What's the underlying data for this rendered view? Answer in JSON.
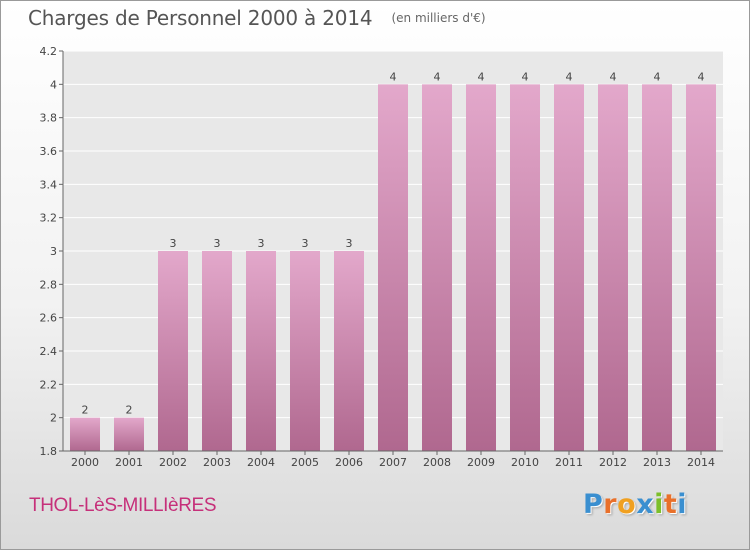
{
  "header": {
    "title": "Charges de Personnel 2000 à 2014",
    "subtitle": "(en milliers d'€)"
  },
  "footer": {
    "commune": "THOL-LèS-MILLIèRES",
    "logo": "Proxiti"
  },
  "colors": {
    "bar_top": "#e3a8cb",
    "bar_bottom": "#b0688f",
    "plot_bg": "#e8e8e8",
    "grid": "#ffffff",
    "commune_text": "#c6307a",
    "logo_letters": [
      "#3a8fd0",
      "#e9702a",
      "#f0a020",
      "#3a8fd0",
      "#7cbf2a",
      "#e9702a",
      "#3a8fd0"
    ]
  },
  "chart_data": {
    "type": "bar",
    "title": "Charges de Personnel 2000 à 2014",
    "subtitle": "(en milliers d'€)",
    "xlabel": "",
    "ylabel": "",
    "categories": [
      "2000",
      "2001",
      "2002",
      "2003",
      "2004",
      "2005",
      "2006",
      "2007",
      "2008",
      "2009",
      "2010",
      "2011",
      "2012",
      "2013",
      "2014"
    ],
    "values": [
      2,
      2,
      3,
      3,
      3,
      3,
      3,
      4,
      4,
      4,
      4,
      4,
      4,
      4,
      4
    ],
    "data_labels": [
      "2",
      "2",
      "3",
      "3",
      "3",
      "3",
      "3",
      "4",
      "4",
      "4",
      "4",
      "4",
      "4",
      "4",
      "4"
    ],
    "ylim": [
      1.8,
      4.2
    ],
    "yticks": [
      1.8,
      2,
      2.2,
      2.4,
      2.6,
      2.8,
      3,
      3.2,
      3.4,
      3.6,
      3.8,
      4,
      4.2
    ],
    "ytick_labels": [
      "1.8",
      "2",
      "2.2",
      "2.4",
      "2.6",
      "2.8",
      "3",
      "3.2",
      "3.4",
      "3.6",
      "3.8",
      "4",
      "4.2"
    ],
    "grid": true,
    "legend": "none"
  }
}
